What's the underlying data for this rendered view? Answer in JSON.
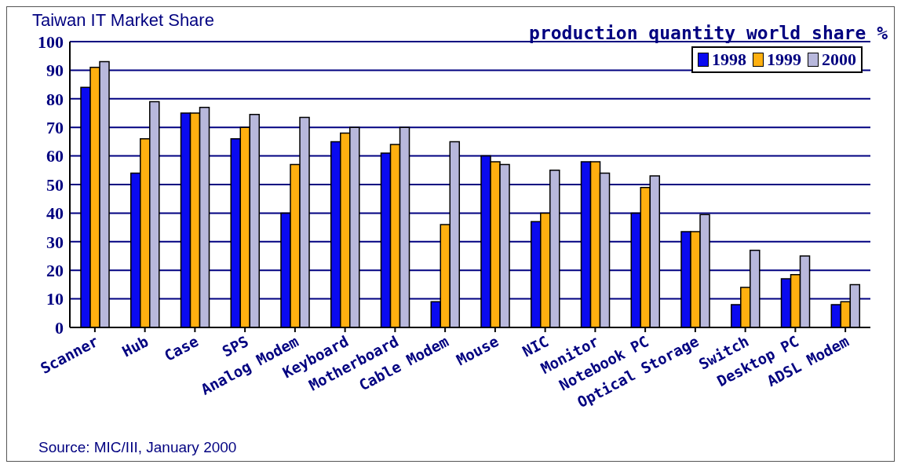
{
  "chart_data": {
    "type": "bar",
    "title": "Taiwan IT Market Share",
    "subtitle": "production quantity world share %",
    "categories": [
      "Scanner",
      "Hub",
      "Case",
      "SPS",
      "Analog Modem",
      "Keyboard",
      "Motherboard",
      "Cable Modem",
      "Mouse",
      "NIC",
      "Monitor",
      "Notebook PC",
      "Optical Storage",
      "Switch",
      "Desktop PC",
      "ADSL Modem"
    ],
    "series": [
      {
        "name": "1998",
        "color": "#0a0af0",
        "values": [
          84,
          54,
          75,
          66,
          40,
          65,
          61,
          9,
          60,
          37,
          58,
          40,
          33.5,
          8,
          17,
          8
        ]
      },
      {
        "name": "1999",
        "color": "#ffb010",
        "values": [
          91,
          66,
          75,
          70,
          57,
          68,
          64,
          36,
          58,
          40,
          58,
          49,
          33.5,
          14,
          18.5,
          9
        ]
      },
      {
        "name": "2000",
        "color": "#b8b8dc",
        "values": [
          93,
          79,
          77,
          74.5,
          73.5,
          70,
          70,
          65,
          57,
          55,
          54,
          53,
          39.5,
          27,
          25,
          15
        ]
      }
    ],
    "ylim": [
      0,
      100
    ],
    "yticks": [
      0,
      10,
      20,
      30,
      40,
      50,
      60,
      70,
      80,
      90,
      100
    ],
    "grid": "y",
    "legend": "top right",
    "annotations": [
      "Source: MIC/III, January 2000"
    ]
  }
}
